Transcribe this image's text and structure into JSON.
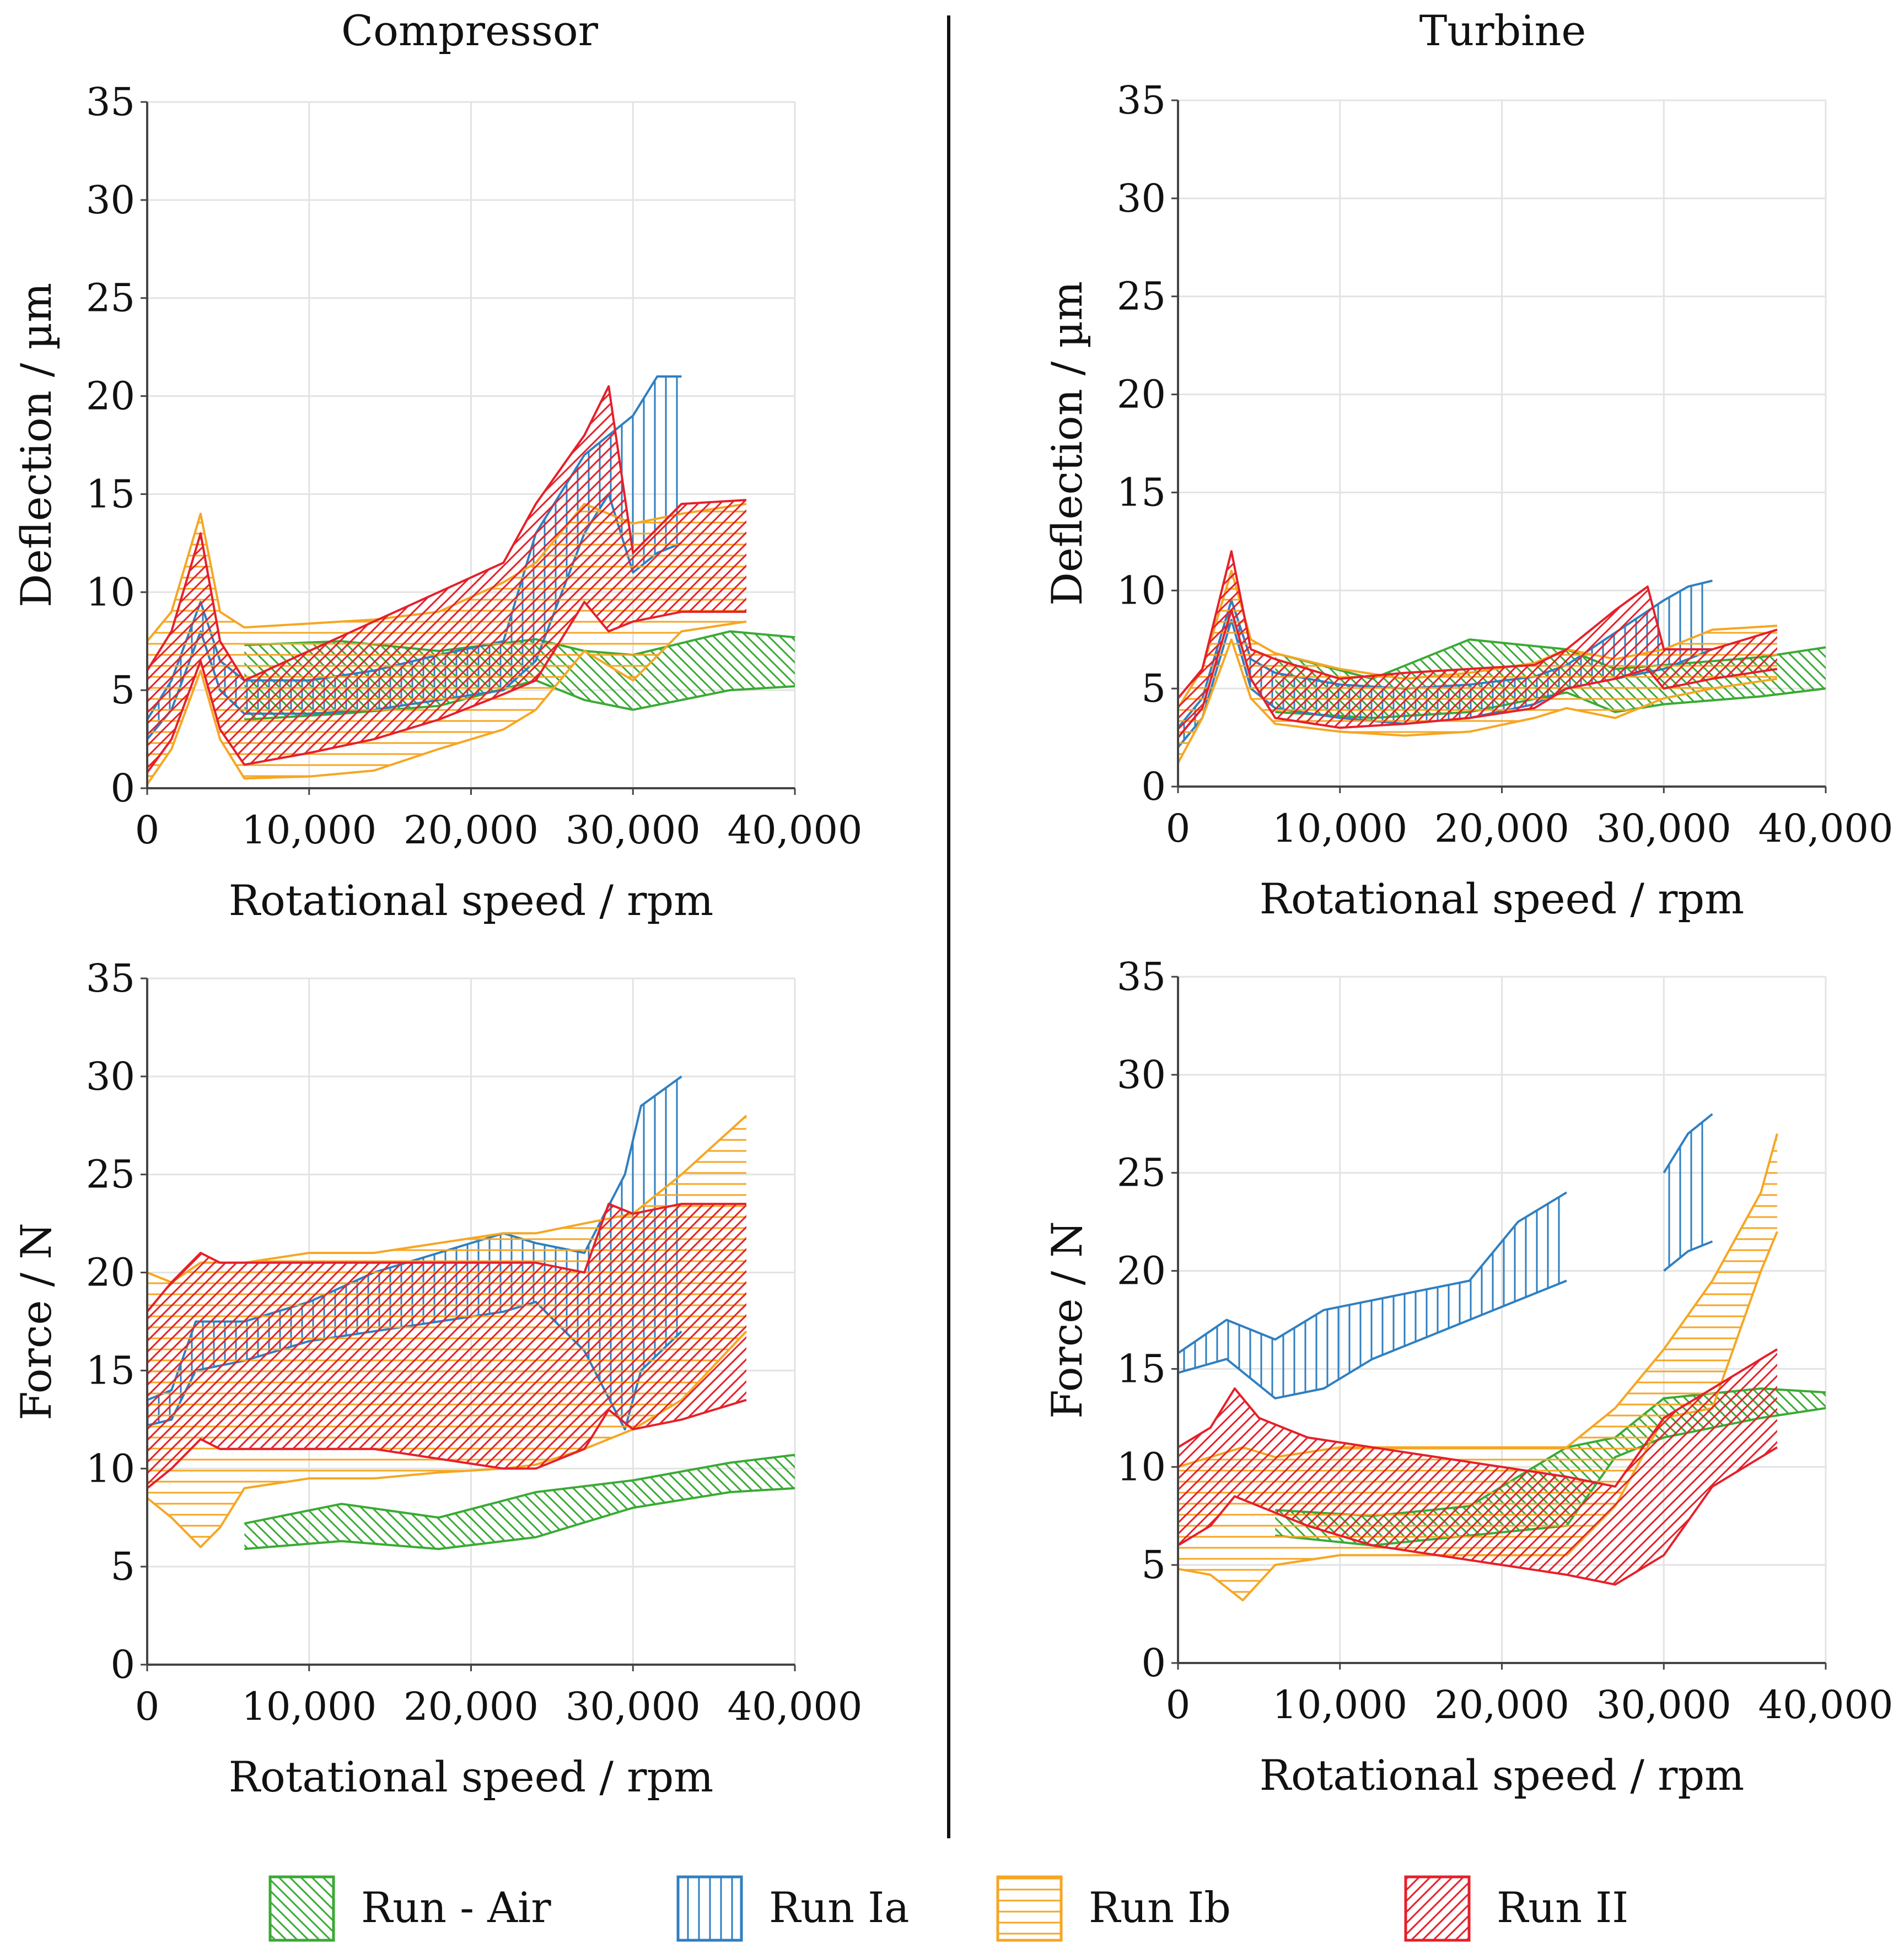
{
  "figure": {
    "columns": [
      "Compressor",
      "Turbine"
    ]
  },
  "colors": {
    "Run - Air": "#3aaa35",
    "Run Ia": "#2f7fc1",
    "Run Ib": "#f6a623",
    "Run II": "#e5202a",
    "grid": "#e3e3e3",
    "axis": "#444444",
    "divider": "#111111"
  },
  "legend": [
    {
      "name": "Run - Air",
      "pattern": "back-diagonal"
    },
    {
      "name": "Run Ia",
      "pattern": "vertical"
    },
    {
      "name": "Run Ib",
      "pattern": "horizontal"
    },
    {
      "name": "Run II",
      "pattern": "diagonal"
    }
  ],
  "chart_data": [
    {
      "type": "area",
      "panel": "compressor-deflection",
      "column": "Compressor",
      "xlabel": "Rotational speed / rpm",
      "ylabel": "Deflection / µm",
      "xlim": [
        0,
        40000
      ],
      "ylim": [
        0,
        35
      ],
      "xticks": [
        0,
        10000,
        20000,
        30000,
        40000
      ],
      "xtick_labels": [
        "0",
        "10,000",
        "20,000",
        "30,000",
        "40,000"
      ],
      "yticks": [
        0,
        5,
        10,
        15,
        20,
        25,
        30,
        35
      ],
      "ytick_labels": [
        "0",
        "5",
        "10",
        "15",
        "20",
        "25",
        "30",
        "35"
      ],
      "grid": true,
      "series": [
        {
          "name": "Run - Air",
          "x": [
            6000,
            12000,
            18000,
            24000,
            27000,
            30000,
            36000,
            40000
          ],
          "lower": [
            3.5,
            3.8,
            4.2,
            5.5,
            4.5,
            4.0,
            5.0,
            5.2
          ],
          "upper": [
            7.3,
            7.5,
            7.0,
            7.6,
            7.0,
            6.8,
            8.0,
            7.7
          ]
        },
        {
          "name": "Run Ia",
          "x": [
            0,
            1500,
            3300,
            4500,
            6000,
            10000,
            14000,
            18000,
            22000,
            24000,
            27000,
            28500,
            30000,
            31500,
            33000
          ],
          "lower": [
            2.5,
            4.0,
            8.0,
            5.0,
            3.8,
            3.8,
            4.0,
            4.5,
            5.0,
            6.5,
            13.0,
            15.0,
            11.0,
            12.0,
            12.5
          ],
          "upper": [
            3.5,
            5.5,
            9.5,
            6.5,
            5.5,
            5.5,
            6.0,
            6.8,
            7.5,
            13.0,
            17.0,
            18.0,
            19.0,
            21.0,
            21.0
          ]
        },
        {
          "name": "Run Ib",
          "x": [
            0,
            1500,
            3300,
            4500,
            6000,
            10000,
            14000,
            18000,
            22000,
            24000,
            27000,
            30000,
            33000,
            37000
          ],
          "lower": [
            0.2,
            2.0,
            6.0,
            2.5,
            0.5,
            0.6,
            0.9,
            2.0,
            3.0,
            4.0,
            7.0,
            5.5,
            8.0,
            8.5
          ],
          "upper": [
            7.5,
            9.0,
            14.0,
            9.0,
            8.2,
            8.4,
            8.6,
            9.0,
            10.5,
            11.5,
            14.5,
            13.5,
            14.0,
            14.5
          ]
        },
        {
          "name": "Run II",
          "x": [
            0,
            1500,
            3300,
            4500,
            6000,
            10000,
            14000,
            18000,
            22000,
            24000,
            27000,
            28500,
            30000,
            33000,
            37000
          ],
          "lower": [
            0.8,
            2.5,
            6.5,
            3.0,
            1.2,
            1.8,
            2.5,
            3.5,
            4.8,
            5.5,
            9.5,
            8.0,
            8.5,
            9.0,
            9.0
          ],
          "upper": [
            6.0,
            8.0,
            13.0,
            7.5,
            5.5,
            7.0,
            8.5,
            10.0,
            11.5,
            14.5,
            18.0,
            20.5,
            12.0,
            14.5,
            14.7
          ]
        }
      ]
    },
    {
      "type": "area",
      "panel": "turbine-deflection",
      "column": "Turbine",
      "xlabel": "Rotational speed / rpm",
      "ylabel": "Deflection / µm",
      "xlim": [
        0,
        40000
      ],
      "ylim": [
        0,
        35
      ],
      "xticks": [
        0,
        10000,
        20000,
        30000,
        40000
      ],
      "xtick_labels": [
        "0",
        "10,000",
        "20,000",
        "30,000",
        "40,000"
      ],
      "yticks": [
        0,
        5,
        10,
        15,
        20,
        25,
        30,
        35
      ],
      "ytick_labels": [
        "0",
        "5",
        "10",
        "15",
        "20",
        "25",
        "30",
        "35"
      ],
      "grid": true,
      "series": [
        {
          "name": "Run - Air",
          "x": [
            6000,
            12000,
            18000,
            24000,
            27000,
            30000,
            36000,
            40000
          ],
          "lower": [
            3.8,
            3.5,
            3.8,
            4.8,
            3.8,
            4.2,
            4.6,
            5.0
          ],
          "upper": [
            6.8,
            5.5,
            7.5,
            7.0,
            6.0,
            6.2,
            6.6,
            7.1
          ]
        },
        {
          "name": "Run Ia",
          "x": [
            0,
            1500,
            3300,
            4500,
            6000,
            10000,
            14000,
            18000,
            22000,
            24000,
            30000,
            31500,
            33000
          ],
          "lower": [
            2.0,
            3.5,
            8.5,
            5.0,
            4.0,
            3.5,
            3.2,
            3.5,
            4.2,
            5.0,
            6.0,
            6.5,
            7.0
          ],
          "upper": [
            3.0,
            4.5,
            9.5,
            6.5,
            5.8,
            5.2,
            5.0,
            5.2,
            5.6,
            6.2,
            9.5,
            10.2,
            10.5
          ]
        },
        {
          "name": "Run Ib",
          "x": [
            0,
            1500,
            3300,
            4500,
            6000,
            10000,
            14000,
            18000,
            22000,
            24000,
            27000,
            30000,
            33000,
            37000
          ],
          "lower": [
            1.2,
            3.5,
            7.5,
            4.5,
            3.2,
            2.8,
            2.6,
            2.8,
            3.5,
            4.0,
            3.5,
            4.5,
            5.0,
            5.5
          ],
          "upper": [
            4.0,
            6.0,
            11.0,
            7.5,
            6.8,
            6.0,
            5.5,
            5.8,
            6.3,
            7.0,
            6.5,
            7.0,
            8.0,
            8.2
          ]
        },
        {
          "name": "Run II",
          "x": [
            0,
            1500,
            3300,
            4500,
            6000,
            10000,
            14000,
            18000,
            22000,
            24000,
            27000,
            29000,
            30000,
            33000,
            37000
          ],
          "lower": [
            2.5,
            4.0,
            9.0,
            5.5,
            3.5,
            3.0,
            3.2,
            3.5,
            4.0,
            5.0,
            5.5,
            6.0,
            5.0,
            5.5,
            6.0
          ],
          "upper": [
            4.5,
            6.0,
            12.0,
            7.0,
            6.5,
            5.5,
            5.8,
            6.0,
            6.2,
            7.0,
            9.0,
            10.2,
            7.0,
            7.0,
            8.0
          ]
        }
      ]
    },
    {
      "type": "area",
      "panel": "compressor-force",
      "column": "Compressor",
      "xlabel": "Rotational speed / rpm",
      "ylabel": "Force / N",
      "xlim": [
        0,
        40000
      ],
      "ylim": [
        0,
        35
      ],
      "xticks": [
        0,
        10000,
        20000,
        30000,
        40000
      ],
      "xtick_labels": [
        "0",
        "10,000",
        "20,000",
        "30,000",
        "40,000"
      ],
      "yticks": [
        0,
        5,
        10,
        15,
        20,
        25,
        30,
        35
      ],
      "ytick_labels": [
        "0",
        "5",
        "10",
        "15",
        "20",
        "25",
        "30",
        "35"
      ],
      "grid": true,
      "series": [
        {
          "name": "Run - Air",
          "x": [
            6000,
            12000,
            18000,
            24000,
            30000,
            36000,
            40000
          ],
          "lower": [
            5.9,
            6.3,
            5.9,
            6.5,
            8.0,
            8.8,
            9.0
          ],
          "upper": [
            7.2,
            8.2,
            7.5,
            8.8,
            9.4,
            10.3,
            10.7
          ]
        },
        {
          "name": "Run Ia",
          "x": [
            0,
            1500,
            3000,
            6000,
            10000,
            14000,
            18000,
            22000,
            24000,
            27000,
            29500,
            30500,
            33000
          ],
          "lower": [
            12.2,
            12.5,
            15.0,
            15.5,
            16.5,
            17.0,
            17.5,
            18.0,
            18.5,
            16.0,
            12.0,
            15.0,
            17.0
          ],
          "upper": [
            13.5,
            14.0,
            17.5,
            17.5,
            18.5,
            20.0,
            21.0,
            22.0,
            21.5,
            21.0,
            25.0,
            28.5,
            30.0
          ]
        },
        {
          "name": "Run Ib",
          "x": [
            0,
            1500,
            3300,
            4500,
            6000,
            10000,
            14000,
            18000,
            22000,
            24000,
            27000,
            30000,
            33000,
            37000
          ],
          "lower": [
            8.5,
            7.5,
            6.0,
            7.0,
            9.0,
            9.5,
            9.5,
            9.8,
            10.0,
            10.2,
            11.0,
            12.0,
            13.5,
            17.0
          ],
          "upper": [
            20.0,
            19.5,
            20.5,
            20.5,
            20.5,
            21.0,
            21.0,
            21.5,
            22.0,
            22.0,
            22.5,
            23.0,
            25.0,
            28.0
          ]
        },
        {
          "name": "Run II",
          "x": [
            0,
            1500,
            3300,
            4500,
            6000,
            10000,
            14000,
            18000,
            22000,
            24000,
            27000,
            28500,
            30000,
            33000,
            37000
          ],
          "lower": [
            9.0,
            10.0,
            11.5,
            11.0,
            11.0,
            11.0,
            11.0,
            10.5,
            10.0,
            10.0,
            11.0,
            13.0,
            12.0,
            12.5,
            13.5
          ],
          "upper": [
            18.0,
            19.5,
            21.0,
            20.5,
            20.5,
            20.5,
            20.5,
            20.5,
            20.5,
            20.5,
            20.0,
            23.5,
            23.0,
            23.5,
            23.5
          ]
        }
      ]
    },
    {
      "type": "area",
      "panel": "turbine-force",
      "column": "Turbine",
      "xlabel": "Rotational speed / rpm",
      "ylabel": "Force / N",
      "xlim": [
        0,
        40000
      ],
      "ylim": [
        0,
        35
      ],
      "xticks": [
        0,
        10000,
        20000,
        30000,
        40000
      ],
      "xtick_labels": [
        "0",
        "10,000",
        "20,000",
        "30,000",
        "40,000"
      ],
      "yticks": [
        0,
        5,
        10,
        15,
        20,
        25,
        30,
        35
      ],
      "ytick_labels": [
        "0",
        "5",
        "10",
        "15",
        "20",
        "25",
        "30",
        "35"
      ],
      "grid": true,
      "series": [
        {
          "name": "Run - Air",
          "x": [
            6000,
            12000,
            18000,
            24000,
            27000,
            30000,
            36000,
            40000
          ],
          "lower": [
            6.5,
            6.0,
            6.5,
            7.0,
            10.5,
            11.5,
            12.5,
            13.0
          ],
          "upper": [
            7.8,
            7.5,
            8.0,
            11.0,
            11.5,
            13.5,
            14.0,
            13.8
          ]
        },
        {
          "name": "Run Ia",
          "x": [
            0,
            3000,
            6000,
            9000,
            12000,
            18000,
            21000,
            24000
          ],
          "lower": [
            14.8,
            15.5,
            13.5,
            14.0,
            15.5,
            17.5,
            18.5,
            19.5
          ],
          "upper": [
            15.8,
            17.5,
            16.5,
            18.0,
            18.5,
            19.5,
            22.5,
            24.0
          ]
        },
        {
          "name": "Run Ia",
          "x": [
            30000,
            31500,
            33000
          ],
          "lower": [
            20.0,
            21.0,
            21.5
          ],
          "upper": [
            25.0,
            27.0,
            28.0
          ]
        },
        {
          "name": "Run Ib",
          "x": [
            0,
            2000,
            4000,
            6000,
            10000,
            14000,
            18000,
            22000,
            24000,
            27000,
            30000,
            33000,
            36000,
            37000
          ],
          "lower": [
            4.8,
            4.5,
            3.2,
            5.0,
            5.5,
            5.5,
            5.5,
            5.5,
            5.5,
            8.0,
            12.5,
            13.0,
            20.0,
            22.0
          ],
          "upper": [
            10.0,
            10.5,
            11.0,
            10.5,
            11.0,
            11.0,
            11.0,
            11.0,
            11.0,
            13.0,
            16.0,
            19.5,
            24.0,
            27.0
          ]
        },
        {
          "name": "Run II",
          "x": [
            0,
            2000,
            3500,
            5000,
            8000,
            12000,
            16000,
            20000,
            24000,
            27000,
            30000,
            33000,
            36000,
            37000
          ],
          "lower": [
            6.0,
            7.0,
            8.5,
            8.0,
            7.0,
            6.0,
            5.5,
            5.0,
            4.5,
            4.0,
            5.5,
            9.0,
            10.5,
            11.0
          ],
          "upper": [
            11.0,
            12.0,
            14.0,
            12.5,
            11.5,
            11.0,
            10.5,
            10.0,
            9.5,
            9.0,
            12.5,
            14.0,
            15.5,
            16.0
          ]
        }
      ]
    }
  ]
}
